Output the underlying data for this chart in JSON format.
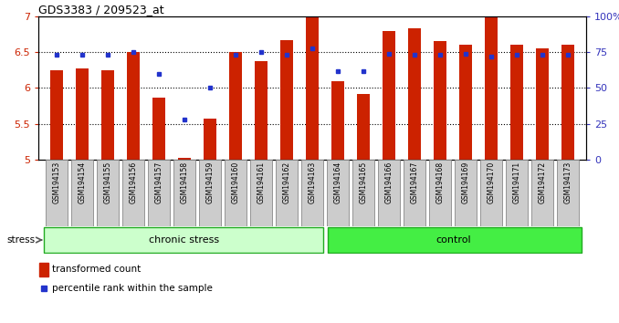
{
  "title": "GDS3383 / 209523_at",
  "samples": [
    "GSM194153",
    "GSM194154",
    "GSM194155",
    "GSM194156",
    "GSM194157",
    "GSM194158",
    "GSM194159",
    "GSM194160",
    "GSM194161",
    "GSM194162",
    "GSM194163",
    "GSM194164",
    "GSM194165",
    "GSM194166",
    "GSM194167",
    "GSM194168",
    "GSM194169",
    "GSM194170",
    "GSM194171",
    "GSM194172",
    "GSM194173"
  ],
  "red_values": [
    6.25,
    6.27,
    6.25,
    6.5,
    5.87,
    5.02,
    5.57,
    6.5,
    6.37,
    6.67,
    7.0,
    6.1,
    5.92,
    6.8,
    6.83,
    6.65,
    6.6,
    7.0,
    6.6,
    6.55,
    6.6
  ],
  "blue_values": [
    73,
    73,
    73,
    75,
    60,
    28,
    50,
    73,
    75,
    73,
    78,
    62,
    62,
    74,
    73,
    73,
    74,
    72,
    73,
    73,
    73
  ],
  "chronic_stress_count": 11,
  "control_count": 10,
  "bar_bottom": 5.0,
  "ylim_left": [
    5.0,
    7.0
  ],
  "ylim_right": [
    0,
    100
  ],
  "yticks_left": [
    5.0,
    5.5,
    6.0,
    6.5,
    7.0
  ],
  "ytick_labels_left": [
    "5",
    "5.5",
    "6",
    "6.5",
    "7"
  ],
  "yticks_right": [
    0,
    25,
    50,
    75,
    100
  ],
  "ytick_labels_right": [
    "0",
    "25",
    "50",
    "75",
    "100%"
  ],
  "hlines": [
    5.5,
    6.0,
    6.5
  ],
  "bar_color": "#CC2200",
  "dot_color": "#2233CC",
  "left_tick_color": "#CC2200",
  "right_tick_color": "#3333BB",
  "chronic_color": "#CCFFCC",
  "control_color": "#44EE44",
  "group_edge_color": "#22AA22",
  "sample_box_color": "#CCCCCC",
  "sample_box_edge": "#888888",
  "legend_red_label": "transformed count",
  "legend_blue_label": "percentile rank within the sample",
  "stress_label": "stress",
  "bar_width": 0.5
}
